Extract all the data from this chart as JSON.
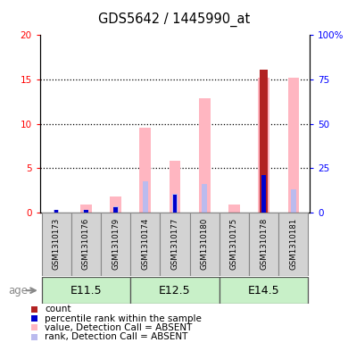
{
  "title": "GDS5642 / 1445990_at",
  "samples": [
    "GSM1310173",
    "GSM1310176",
    "GSM1310179",
    "GSM1310174",
    "GSM1310177",
    "GSM1310180",
    "GSM1310175",
    "GSM1310178",
    "GSM1310181"
  ],
  "age_groups": [
    {
      "label": "E11.5",
      "start": 0,
      "end": 3
    },
    {
      "label": "E12.5",
      "start": 3,
      "end": 6
    },
    {
      "label": "E14.5",
      "start": 6,
      "end": 9
    }
  ],
  "value_absent": [
    0.0,
    0.9,
    1.8,
    9.5,
    5.8,
    12.9,
    0.9,
    15.2,
    15.2
  ],
  "rank_absent": [
    0.3,
    0.3,
    0.7,
    3.5,
    2.1,
    3.2,
    0.0,
    2.6,
    2.6
  ],
  "count": [
    0,
    0,
    0,
    0,
    0,
    0,
    0,
    16.1,
    0
  ],
  "percentile_rank": [
    0.3,
    0.3,
    0.6,
    0.0,
    2.0,
    0.0,
    0.0,
    4.2,
    0.0
  ],
  "ylim_left": [
    0,
    20
  ],
  "ylim_right": [
    0,
    100
  ],
  "yticks_left": [
    0,
    5,
    10,
    15,
    20
  ],
  "yticks_right": [
    0,
    25,
    50,
    75,
    100
  ],
  "yticklabels_left": [
    "0",
    "5",
    "10",
    "15",
    "20"
  ],
  "yticklabels_right": [
    "0",
    "25",
    "50",
    "75",
    "100%"
  ],
  "color_count": "#B22222",
  "color_percentile": "#0000CD",
  "color_value_absent": "#FFB6C1",
  "color_rank_absent": "#BBBBEE",
  "color_age_group_light": "#C8F0C8",
  "color_age_group_dark": "#55DD55",
  "color_sample_bg": "#D3D3D3",
  "legend_items": [
    {
      "label": "count",
      "color": "#B22222"
    },
    {
      "label": "percentile rank within the sample",
      "color": "#0000CD"
    },
    {
      "label": "value, Detection Call = ABSENT",
      "color": "#FFB6C1"
    },
    {
      "label": "rank, Detection Call = ABSENT",
      "color": "#BBBBEE"
    }
  ],
  "age_label": "age"
}
